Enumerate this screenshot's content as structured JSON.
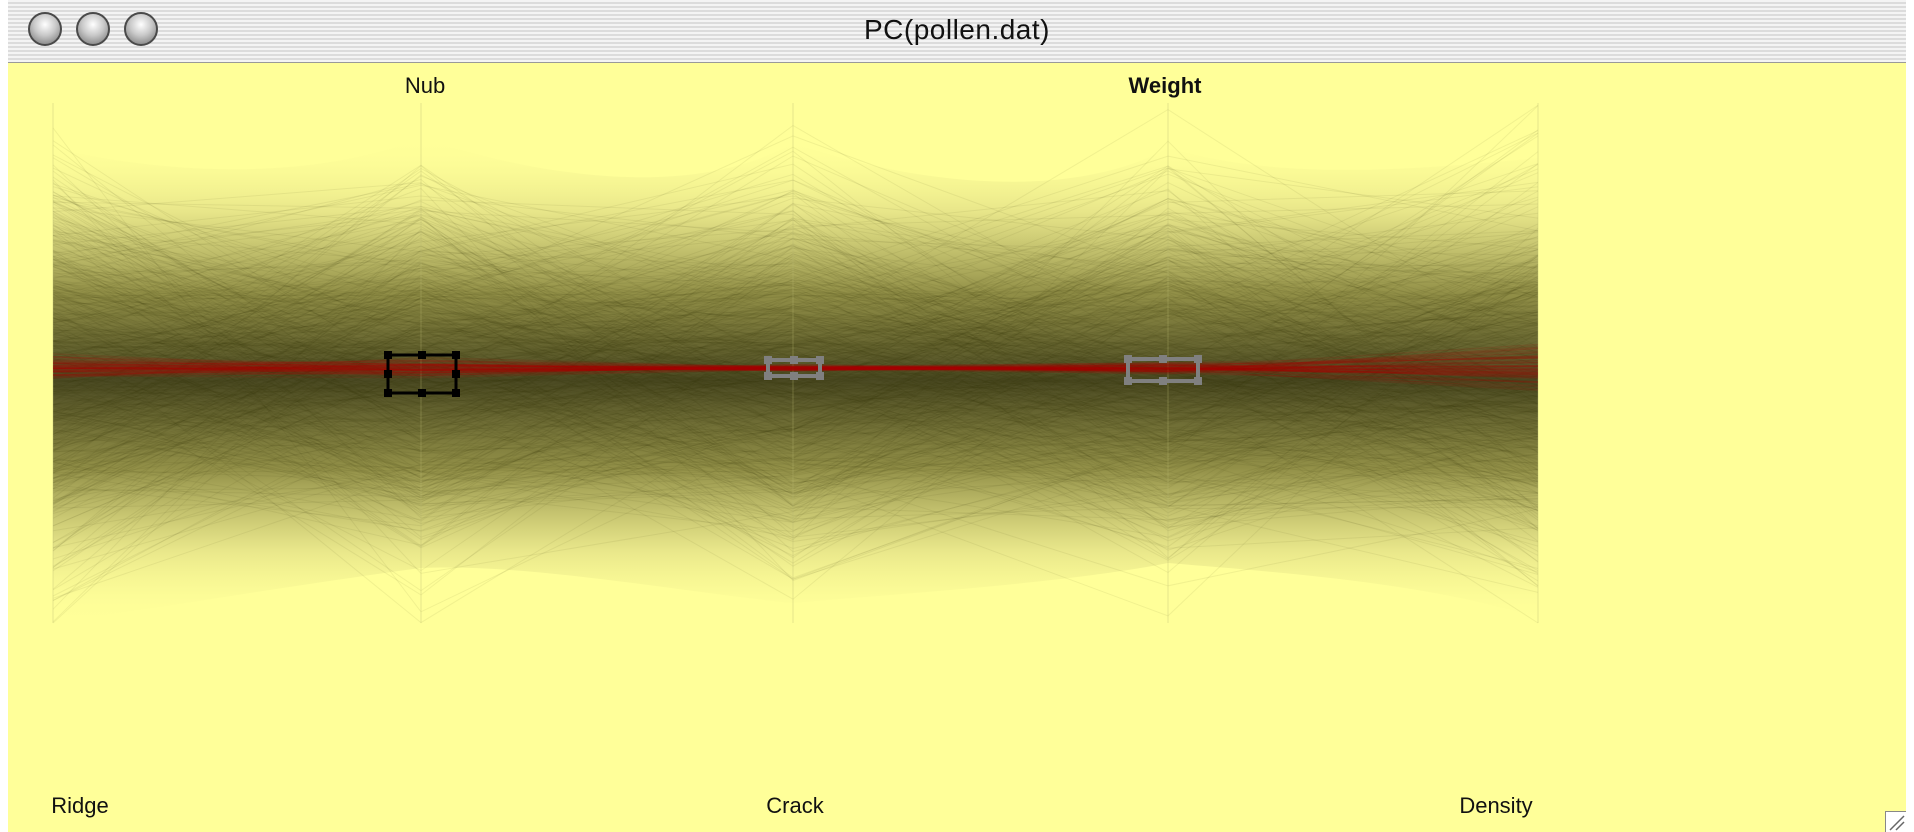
{
  "window": {
    "title": "PC(pollen.dat)"
  },
  "axes": {
    "top": [
      {
        "label": "Nub",
        "bold": false
      },
      {
        "label": "Weight",
        "bold": true
      }
    ],
    "bottom": [
      {
        "label": "Ridge"
      },
      {
        "label": "Crack"
      },
      {
        "label": "Density"
      }
    ]
  },
  "colors": {
    "background": "#ffff99",
    "lines": "#3a3a10",
    "selected": "#b00000",
    "selected_brush": "#000000",
    "inactive_brush": "#808080"
  },
  "icons": {
    "close": "window-close-icon",
    "minimize": "window-minimize-icon",
    "zoom": "window-zoom-icon",
    "resize": "resize-grip-icon"
  }
}
